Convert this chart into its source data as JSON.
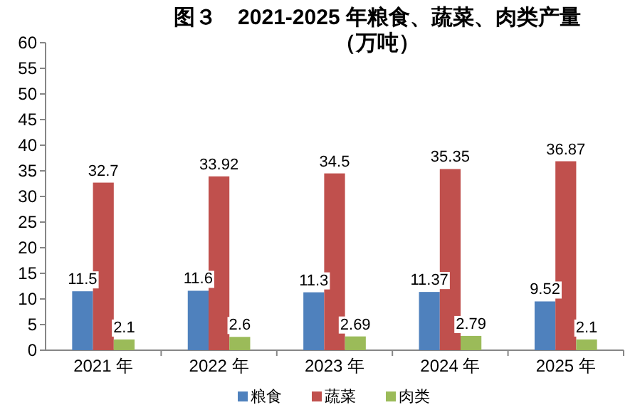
{
  "chart_data": {
    "type": "bar",
    "title": "图３　2021-2025 年粮食、蔬菜、肉类产量（万吨）",
    "categories": [
      "2021 年",
      "2022 年",
      "2023 年",
      "2024 年",
      "2025 年"
    ],
    "series": [
      {
        "name": "粮食",
        "color": "#4f81bd",
        "values": [
          11.5,
          11.6,
          11.3,
          11.37,
          9.52
        ]
      },
      {
        "name": "蔬菜",
        "color": "#c0504d",
        "values": [
          32.7,
          33.92,
          34.5,
          35.35,
          36.87
        ]
      },
      {
        "name": "肉类",
        "color": "#9bbb59",
        "values": [
          2.1,
          2.6,
          2.69,
          2.79,
          2.1
        ]
      }
    ],
    "ylim": [
      0,
      60
    ],
    "yticks": [
      0,
      5,
      10,
      15,
      20,
      25,
      30,
      35,
      40,
      45,
      50,
      55,
      60
    ],
    "data_labels": true,
    "legend": "bottom",
    "grid": false
  }
}
